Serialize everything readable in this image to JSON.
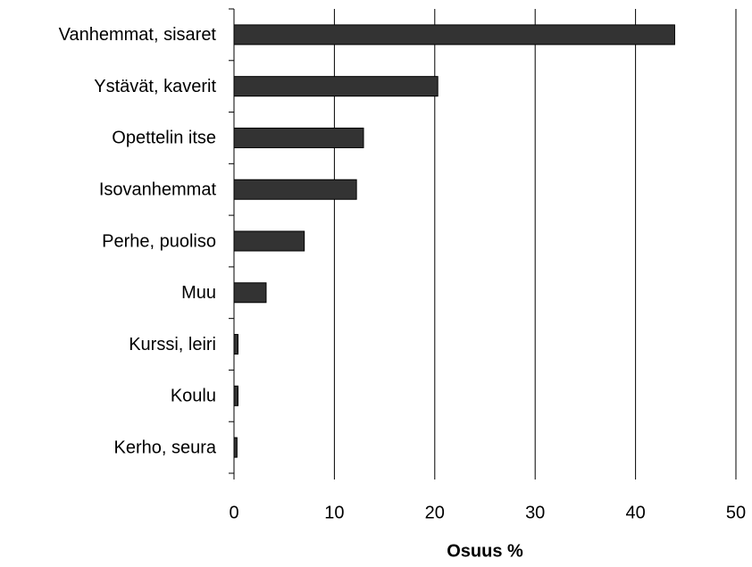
{
  "chart_data": {
    "type": "barh",
    "x_label": "Osuus %",
    "categories": [
      "Vanhemmat, sisaret",
      "Ystävät, kaverit",
      "Opettelin itse",
      "Isovanhemmat",
      "Perhe, puoliso",
      "Muu",
      "Kurssi, leiri",
      "Koulu",
      "Kerho, seura"
    ],
    "values": [
      43.9,
      20.3,
      12.9,
      12.2,
      7.0,
      3.2,
      0.4,
      0.4,
      0.3
    ],
    "color": "#333333",
    "xlim": [
      0,
      50
    ],
    "xticks": [
      0,
      10,
      20,
      30,
      40,
      50
    ],
    "grid": true
  }
}
